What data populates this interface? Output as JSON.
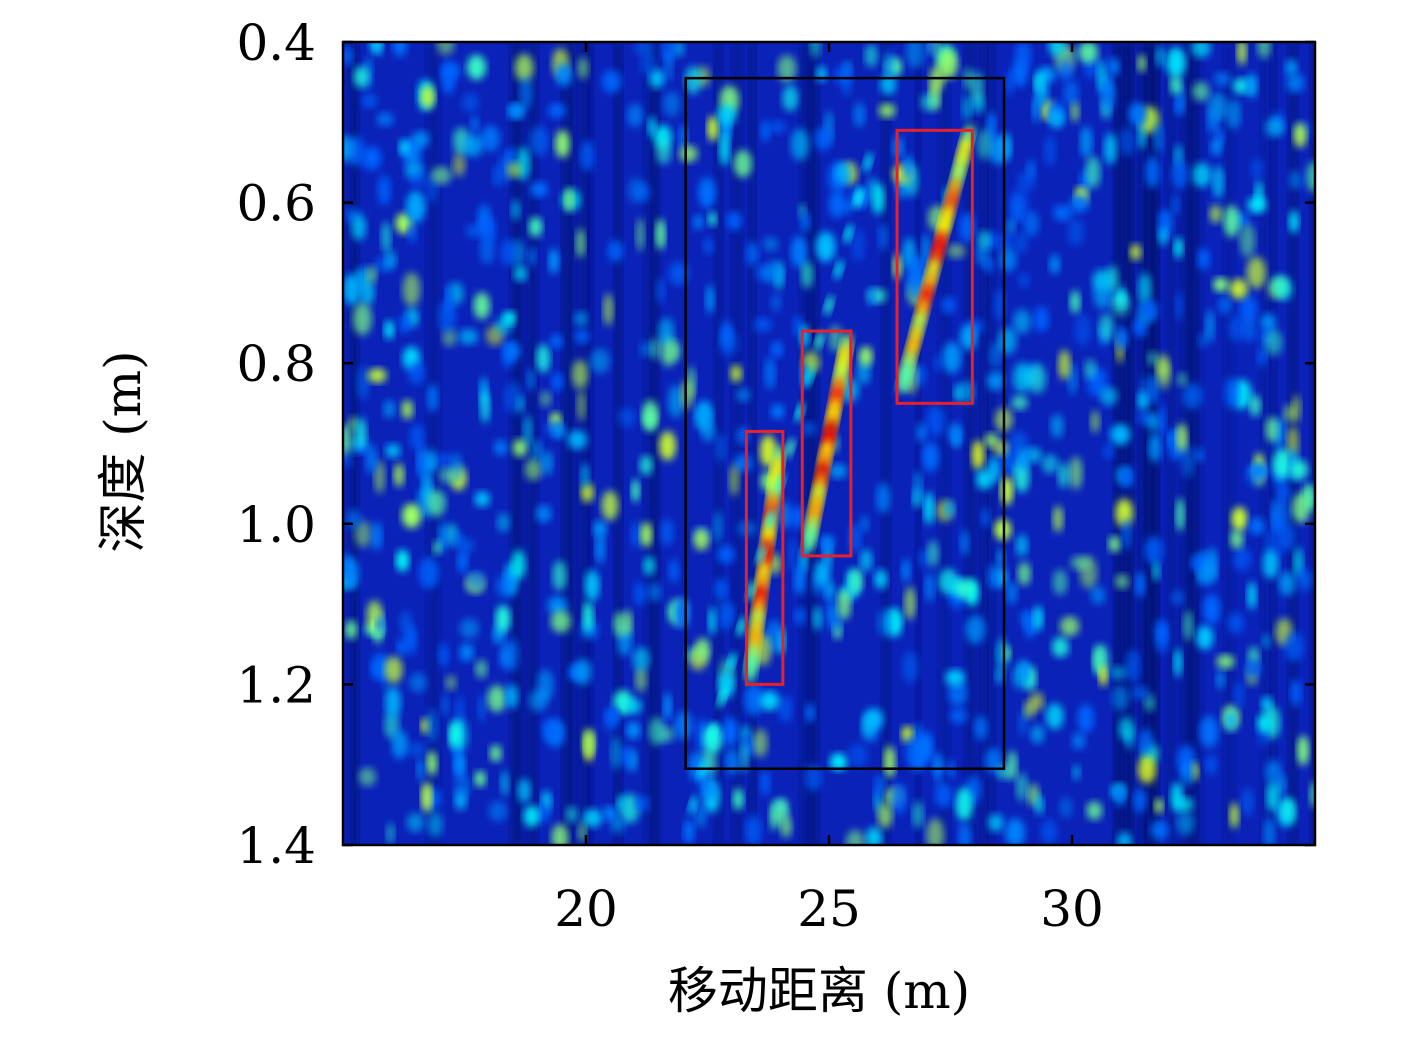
{
  "chart_data": {
    "type": "heatmap",
    "title": "",
    "xlabel": "移动距离 (m)",
    "ylabel": "深度 (m)",
    "xlim": [
      15,
      35
    ],
    "ylim": [
      1.4,
      0.4
    ],
    "y_axis_inverted": true,
    "x_ticks": [
      20,
      25,
      30
    ],
    "x_tick_labels": [
      "20",
      "25",
      "30"
    ],
    "y_ticks": [
      0.4,
      0.6,
      0.8,
      1.0,
      1.2,
      1.4
    ],
    "y_tick_labels": [
      "0.4",
      "0.6",
      "0.8",
      "1.0",
      "1.2",
      "1.4"
    ],
    "colormap": "jet",
    "colors": {
      "background": "#0a22b8",
      "region_box": "#000000",
      "target_box": "#e8202a"
    },
    "grid": false,
    "legend": "none",
    "region_boxes": [
      {
        "x": [
          22.05,
          28.6
        ],
        "y": [
          0.445,
          1.305
        ],
        "color": "black"
      }
    ],
    "target_boxes": [
      {
        "x": [
          23.3,
          24.05
        ],
        "y": [
          0.885,
          1.2
        ],
        "color": "red"
      },
      {
        "x": [
          24.45,
          25.45
        ],
        "y": [
          0.76,
          1.04
        ],
        "color": "red"
      },
      {
        "x": [
          26.4,
          27.95
        ],
        "y": [
          0.51,
          0.85
        ],
        "color": "red"
      }
    ],
    "hotspots": [
      {
        "x0": 27.85,
        "y0": 0.52,
        "x1": 26.55,
        "y1": 0.82,
        "peak": 0.9
      },
      {
        "x0": 25.35,
        "y0": 0.78,
        "x1": 24.6,
        "y1": 1.02,
        "peak": 0.95
      },
      {
        "x0": 23.95,
        "y0": 0.92,
        "x1": 23.4,
        "y1": 1.18,
        "peak": 0.92
      },
      {
        "x0": 25.8,
        "y0": 0.55,
        "x1": 22.2,
        "y1": 1.35,
        "peak": 0.45
      }
    ]
  }
}
